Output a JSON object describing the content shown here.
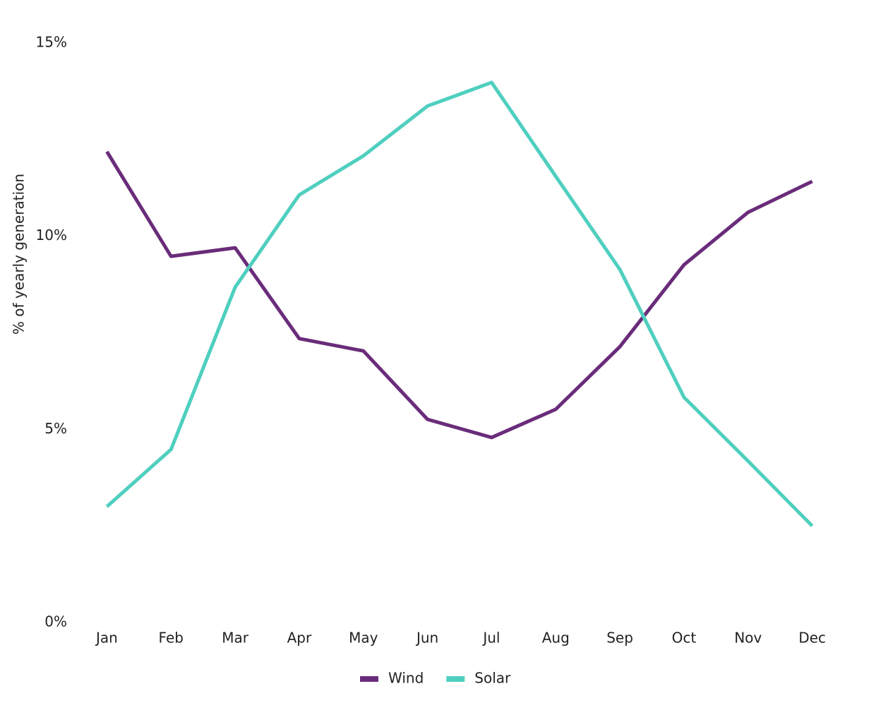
{
  "chart_data": {
    "type": "line",
    "y_label": "% of yearly generation",
    "categories": [
      "Jan",
      "Feb",
      "Mar",
      "Apr",
      "May",
      "Jun",
      "Jul",
      "Aug",
      "Sep",
      "Oct",
      "Nov",
      "Dec"
    ],
    "series": [
      {
        "name": "Wind",
        "color": "#6a2c7a",
        "values": [
          12.19,
          9.48,
          9.7,
          7.35,
          7.03,
          5.26,
          4.79,
          5.52,
          7.14,
          9.26,
          10.62,
          11.42
        ]
      },
      {
        "name": "Solar",
        "color": "#4fcfbf",
        "values": [
          3.0,
          4.48,
          8.68,
          11.07,
          12.08,
          13.37,
          13.98,
          11.55,
          9.14,
          5.83,
          4.18,
          2.5
        ]
      }
    ],
    "ylim": [
      0,
      15
    ],
    "yticks": [
      {
        "value": 0,
        "label": "0%"
      },
      {
        "value": 5,
        "label": "5%"
      },
      {
        "value": 10,
        "label": "10%"
      },
      {
        "value": 15,
        "label": "15%"
      }
    ],
    "grid": false,
    "legend": "bottom"
  }
}
